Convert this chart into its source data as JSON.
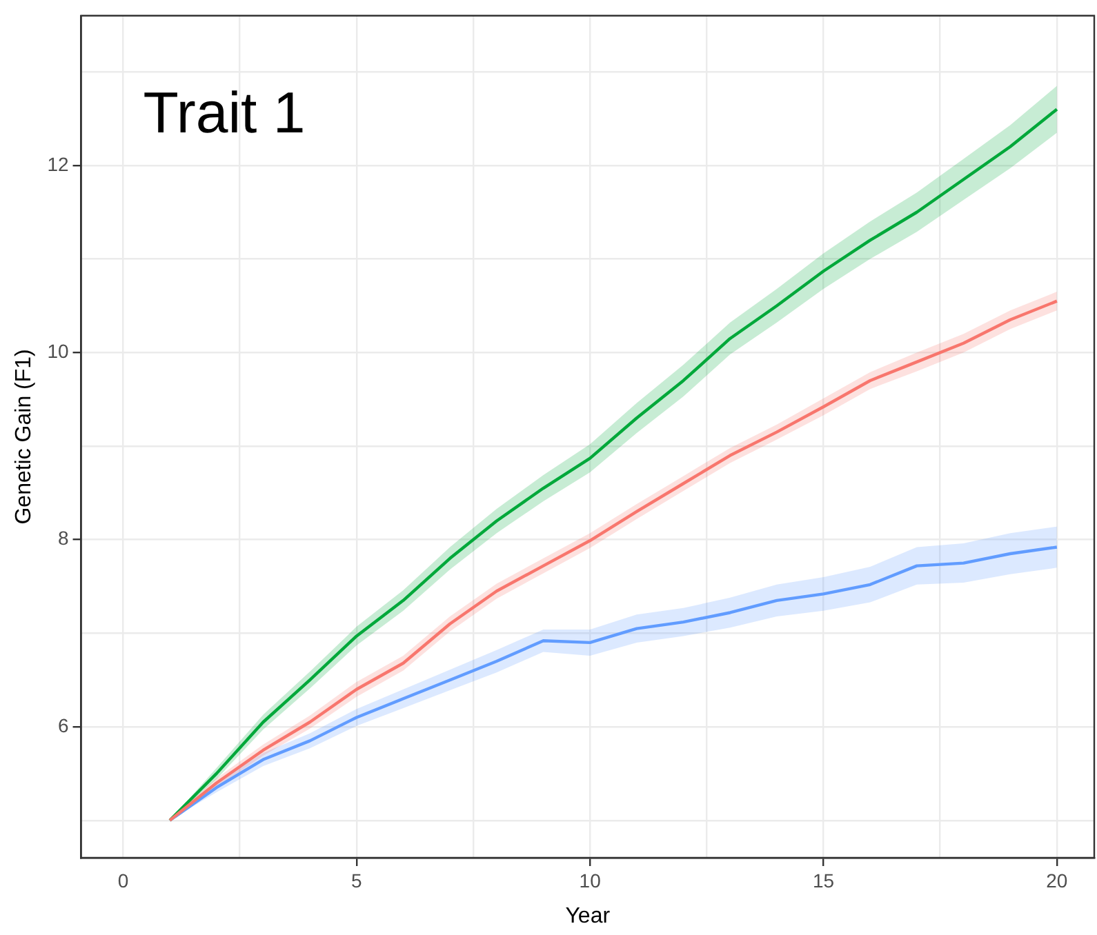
{
  "chart_data": {
    "type": "line",
    "xlabel": "Year",
    "ylabel": "Genetic Gain (F1)",
    "annotations": [
      "Trait 1"
    ],
    "x": [
      1,
      2,
      3,
      4,
      5,
      6,
      7,
      8,
      9,
      10,
      11,
      12,
      13,
      14,
      15,
      16,
      17,
      18,
      19,
      20
    ],
    "series": [
      {
        "color": "#f8766d",
        "values": [
          5.0,
          5.4,
          5.75,
          6.05,
          6.4,
          6.68,
          7.1,
          7.45,
          7.72,
          7.99,
          8.3,
          8.6,
          8.9,
          9.15,
          9.42,
          9.7,
          9.9,
          10.1,
          10.35,
          10.55
        ],
        "lower": [
          5.0,
          5.35,
          5.69,
          5.98,
          6.32,
          6.6,
          7.02,
          7.37,
          7.64,
          7.91,
          8.22,
          8.52,
          8.82,
          9.07,
          9.33,
          9.61,
          9.8,
          10.0,
          10.25,
          10.45
        ],
        "upper": [
          5.0,
          5.45,
          5.81,
          6.12,
          6.48,
          6.76,
          7.18,
          7.53,
          7.8,
          8.07,
          8.38,
          8.68,
          8.98,
          9.23,
          9.51,
          9.79,
          10.0,
          10.2,
          10.45,
          10.65
        ]
      },
      {
        "color": "#00a83a",
        "values": [
          5.0,
          5.5,
          6.05,
          6.5,
          6.97,
          7.35,
          7.8,
          8.2,
          8.55,
          8.87,
          9.3,
          9.7,
          10.15,
          10.5,
          10.87,
          11.2,
          11.5,
          11.85,
          12.2,
          12.6
        ],
        "lower": [
          5.0,
          5.44,
          5.97,
          6.41,
          6.87,
          7.24,
          7.68,
          8.07,
          8.41,
          8.72,
          9.14,
          9.53,
          9.98,
          10.32,
          10.68,
          11.0,
          11.29,
          11.63,
          11.97,
          12.35
        ],
        "upper": [
          5.0,
          5.56,
          6.13,
          6.59,
          7.07,
          7.46,
          7.92,
          8.33,
          8.69,
          9.02,
          9.46,
          9.87,
          10.32,
          10.68,
          11.06,
          11.4,
          11.71,
          12.07,
          12.43,
          12.85
        ]
      },
      {
        "color": "#619cff",
        "values": [
          5.0,
          5.35,
          5.65,
          5.85,
          6.1,
          6.3,
          6.5,
          6.7,
          6.92,
          6.9,
          7.05,
          7.12,
          7.22,
          7.35,
          7.42,
          7.52,
          7.72,
          7.75,
          7.85,
          7.92
        ],
        "lower": [
          5.0,
          5.3,
          5.58,
          5.77,
          6.01,
          6.2,
          6.39,
          6.58,
          6.8,
          6.76,
          6.9,
          6.97,
          7.06,
          7.18,
          7.24,
          7.33,
          7.52,
          7.54,
          7.63,
          7.7
        ],
        "upper": [
          5.0,
          5.4,
          5.72,
          5.93,
          6.19,
          6.4,
          6.61,
          6.82,
          7.04,
          7.04,
          7.2,
          7.27,
          7.38,
          7.52,
          7.6,
          7.71,
          7.92,
          7.96,
          8.07,
          8.14
        ]
      }
    ],
    "xlim": [
      -0.9,
      20.8
    ],
    "xticks": [
      0,
      {
        "value": 2.5,
        "label": null
      },
      5,
      {
        "value": 7.5,
        "label": null
      },
      10,
      {
        "value": 12.5,
        "label": null
      },
      15,
      {
        "value": 17.5,
        "label": null
      },
      20
    ],
    "ylim": [
      4.6,
      13.6
    ],
    "yticks": [
      {
        "value": 5,
        "label": null
      },
      6,
      {
        "value": 7,
        "label": null
      },
      8,
      {
        "value": 9,
        "label": null
      },
      10,
      {
        "value": 11,
        "label": null
      },
      12,
      {
        "value": 13,
        "label": null
      }
    ],
    "grid": true,
    "legend": false,
    "marker": "none",
    "line_style": "solid"
  }
}
